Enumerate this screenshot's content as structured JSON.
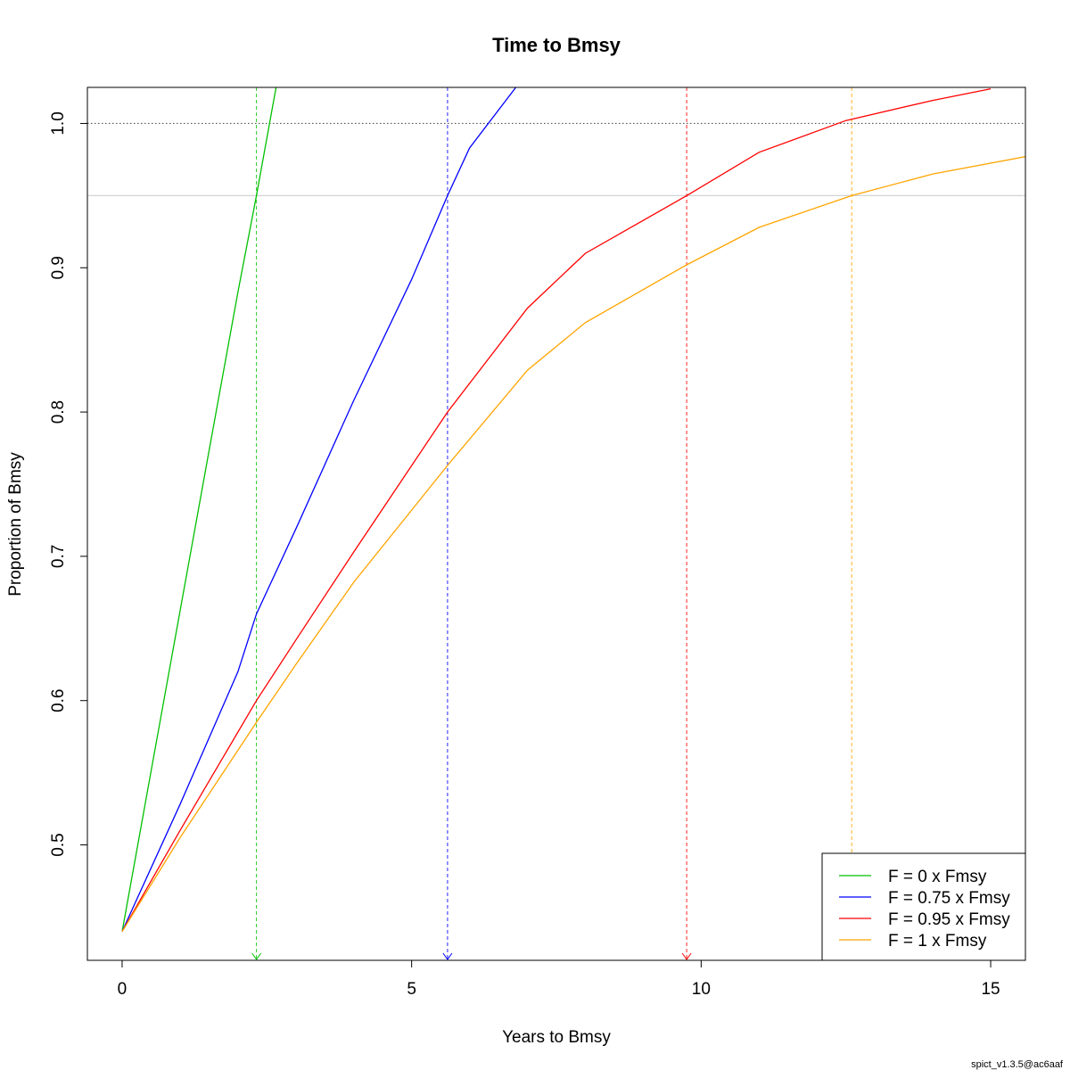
{
  "chart_data": {
    "type": "line",
    "title": "Time to Bmsy",
    "xlabel": "Years to Bmsy",
    "ylabel": "Proportion of Bmsy",
    "xlim": [
      -0.6,
      15.6
    ],
    "ylim": [
      0.42,
      1.025
    ],
    "x_ticks": [
      0,
      5,
      10,
      15
    ],
    "x_tick_labels": [
      "0",
      "5",
      "10",
      "15"
    ],
    "y_ticks": [
      0.5,
      0.6,
      0.7,
      0.8,
      0.9,
      1.0
    ],
    "y_tick_labels": [
      "0.5",
      "0.6",
      "0.7",
      "0.8",
      "0.9",
      "1.0"
    ],
    "reference_lines": [
      {
        "y": 1.0,
        "style": "dotted",
        "color": "#555555"
      },
      {
        "y": 0.95,
        "style": "solid",
        "color": "#d3d3d3"
      }
    ],
    "series": [
      {
        "name": "F = 0 x Fmsy",
        "color": "#00c000",
        "x": [
          0,
          0.5,
          1,
          1.5,
          2,
          2.32,
          2.6,
          2.7
        ],
        "y": [
          0.44,
          0.551,
          0.662,
          0.773,
          0.883,
          0.95,
          1.012,
          1.034
        ],
        "time_to_095": 2.32
      },
      {
        "name": "F = 0.75 x Fmsy",
        "color": "#0000ff",
        "x": [
          0,
          1,
          2,
          2.32,
          3,
          4,
          5,
          5.62,
          6,
          6.8
        ],
        "y": [
          0.44,
          0.528,
          0.62,
          0.66,
          0.719,
          0.808,
          0.892,
          0.95,
          0.983,
          1.025
        ],
        "time_to_095": 5.62
      },
      {
        "name": "F = 0.95 x Fmsy",
        "color": "#ff0000",
        "x": [
          0,
          1,
          2.32,
          3,
          4,
          5.62,
          7,
          8,
          9.75,
          11,
          12.5,
          14,
          15
        ],
        "y": [
          0.44,
          0.51,
          0.6,
          0.642,
          0.703,
          0.8,
          0.872,
          0.91,
          0.95,
          0.98,
          1.002,
          1.016,
          1.024
        ],
        "time_to_095": 9.75
      },
      {
        "name": "F = 1 x Fmsy",
        "color": "#ffa500",
        "x": [
          0,
          1,
          2.32,
          3,
          4,
          5.62,
          7,
          8,
          9.75,
          11,
          12.6,
          14,
          15.6
        ],
        "y": [
          0.44,
          0.505,
          0.585,
          0.625,
          0.682,
          0.763,
          0.829,
          0.862,
          0.902,
          0.928,
          0.95,
          0.965,
          0.977
        ],
        "time_to_095": 12.6
      }
    ],
    "legend_position": "bottom-right",
    "grid": false
  },
  "footer_text": "spict_v1.3.5@ac6aaf"
}
